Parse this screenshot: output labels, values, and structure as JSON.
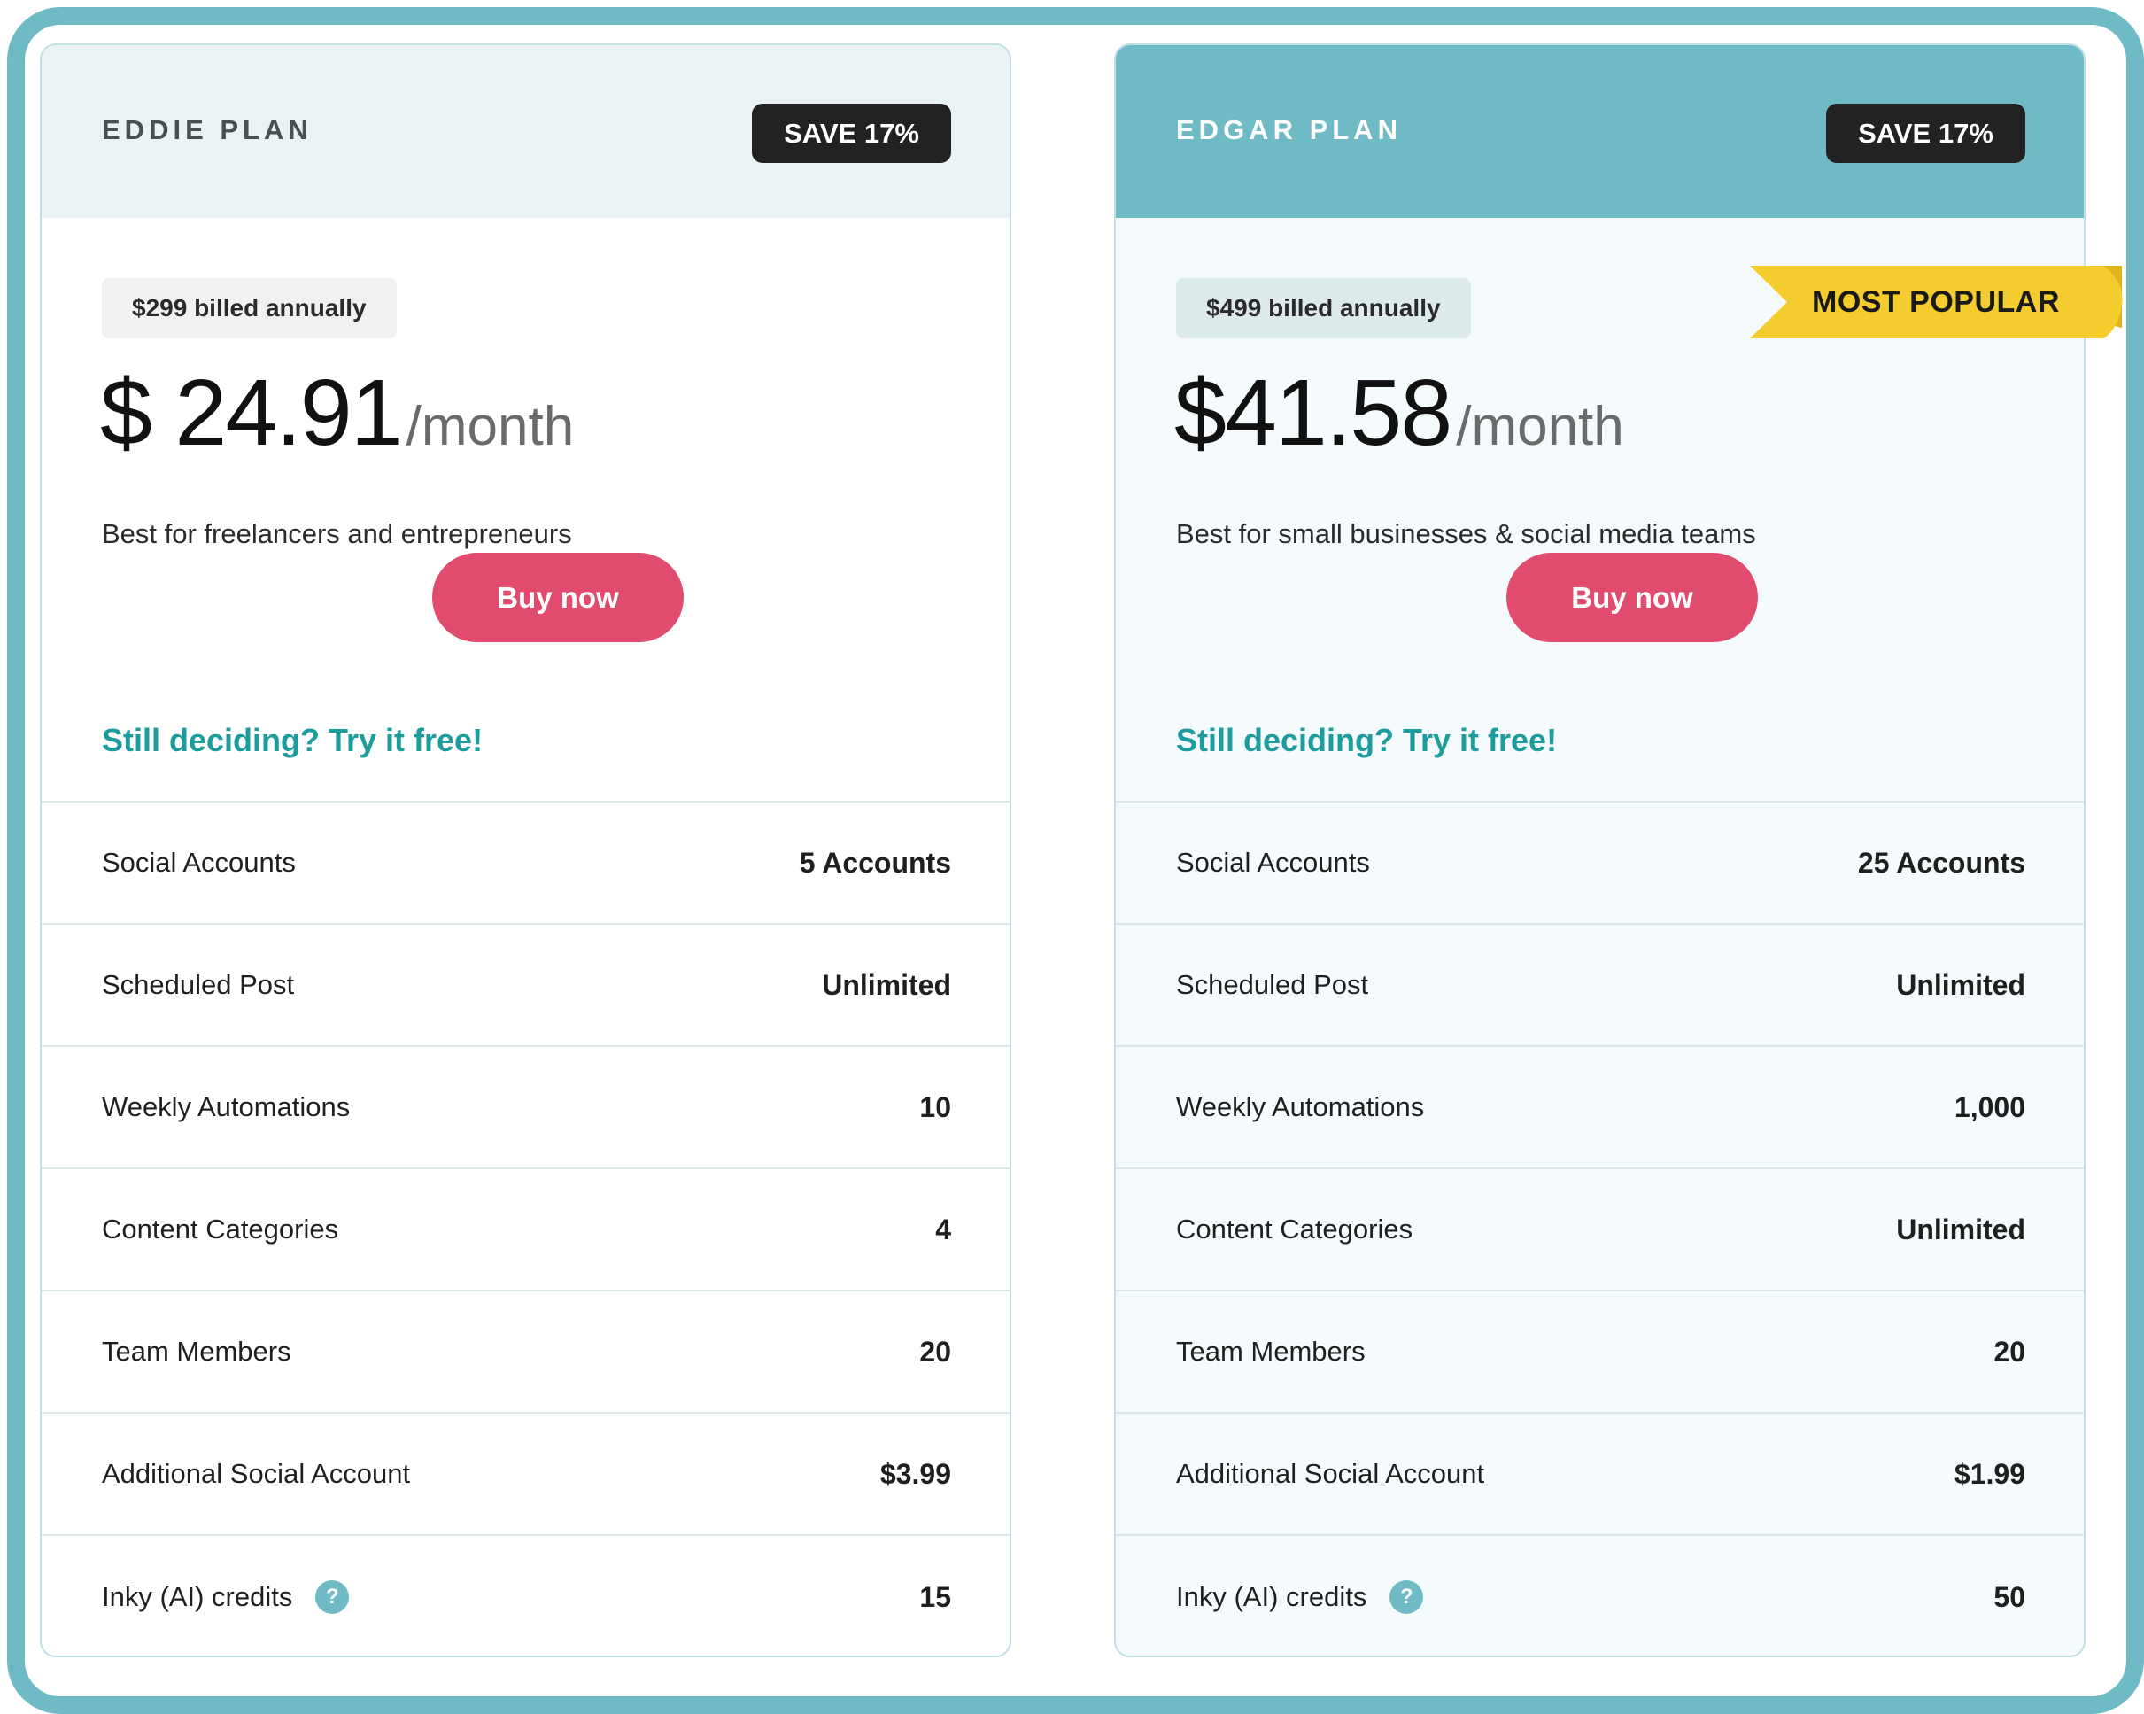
{
  "colors": {
    "frame": "#6fbbc5",
    "accent_teal": "#6fbbc5",
    "buy_button": "#e04b6e",
    "link": "#1c9c9c",
    "badge_dark": "#222222",
    "ribbon": "#f5cc2e"
  },
  "plans": [
    {
      "name": "EDDIE PLAN",
      "save_badge": "SAVE 17%",
      "billed": "$299 billed annually",
      "price": "$ 24.91",
      "per": "/month",
      "tagline": "Best for freelancers and entrepreneurs",
      "buy_label": "Buy now",
      "trial_link": "Still deciding? Try it free!",
      "features": [
        {
          "label": "Social Accounts",
          "value": "5 Accounts"
        },
        {
          "label": "Scheduled Post",
          "value": "Unlimited"
        },
        {
          "label": "Weekly Automations",
          "value": "10"
        },
        {
          "label": "Content Categories",
          "value": "4"
        },
        {
          "label": "Team Members",
          "value": "20"
        },
        {
          "label": "Additional Social Account",
          "value": "$3.99"
        },
        {
          "label": "Inky (AI) credits",
          "value": "15",
          "help": "?"
        }
      ]
    },
    {
      "name": "EDGAR PLAN",
      "save_badge": "SAVE 17%",
      "billed": "$499 billed annually",
      "price": "$41.58",
      "per": "/month",
      "tagline": "Best for small businesses & social media teams",
      "buy_label": "Buy now",
      "trial_link": "Still deciding? Try it free!",
      "ribbon": "MOST POPULAR",
      "features": [
        {
          "label": "Social Accounts",
          "value": "25 Accounts"
        },
        {
          "label": "Scheduled Post",
          "value": "Unlimited"
        },
        {
          "label": "Weekly Automations",
          "value": "1,000"
        },
        {
          "label": "Content Categories",
          "value": "Unlimited"
        },
        {
          "label": "Team Members",
          "value": "20"
        },
        {
          "label": "Additional Social Account",
          "value": "$1.99"
        },
        {
          "label": "Inky (AI) credits",
          "value": "50",
          "help": "?"
        }
      ]
    }
  ]
}
